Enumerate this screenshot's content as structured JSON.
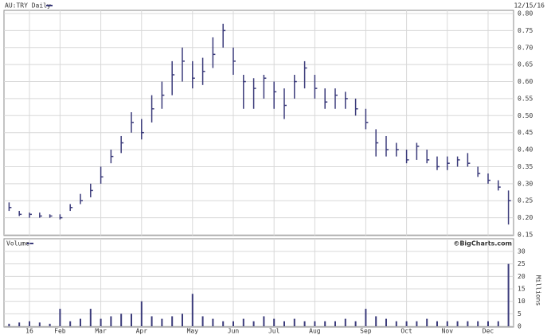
{
  "chart_data": [
    {
      "type": "ohlc",
      "title": "AU:TRY Daily",
      "date_label": "12/15/16",
      "color": "#3a3a7a",
      "grid": true,
      "categories": [
        null,
        null,
        "16",
        null,
        null,
        "Feb",
        null,
        null,
        null,
        "Mar",
        null,
        null,
        null,
        "Apr",
        null,
        null,
        null,
        null,
        "May",
        null,
        null,
        null,
        "Jun",
        null,
        null,
        null,
        "Jul",
        null,
        null,
        null,
        "Aug",
        null,
        null,
        null,
        null,
        "Sep",
        null,
        null,
        null,
        "Oct",
        null,
        null,
        null,
        "Nov",
        null,
        null,
        null,
        "Dec",
        null,
        null
      ],
      "series": [
        {
          "high": [
            0.245,
            0.22,
            0.215,
            0.215,
            0.21,
            0.21,
            0.24,
            0.27,
            0.3,
            0.35,
            0.4,
            0.44,
            0.51,
            0.49,
            0.56,
            0.6,
            0.66,
            0.7,
            0.66,
            0.67,
            0.73,
            0.77,
            0.7,
            0.62,
            0.61,
            0.62,
            0.6,
            0.58,
            0.62,
            0.66,
            0.62,
            0.58,
            0.58,
            0.57,
            0.55,
            0.52,
            0.46,
            0.44,
            0.42,
            0.4,
            0.42,
            0.4,
            0.38,
            0.38,
            0.38,
            0.39,
            0.35,
            0.33,
            0.31,
            0.28
          ],
          "low": [
            0.22,
            0.205,
            0.2,
            0.2,
            0.2,
            0.195,
            0.22,
            0.24,
            0.26,
            0.3,
            0.36,
            0.39,
            0.45,
            0.43,
            0.48,
            0.52,
            0.56,
            0.6,
            0.58,
            0.59,
            0.64,
            0.7,
            0.62,
            0.52,
            0.52,
            0.55,
            0.52,
            0.49,
            0.55,
            0.58,
            0.55,
            0.52,
            0.52,
            0.52,
            0.5,
            0.46,
            0.38,
            0.38,
            0.38,
            0.36,
            0.37,
            0.36,
            0.34,
            0.34,
            0.35,
            0.35,
            0.32,
            0.3,
            0.28,
            0.18
          ],
          "close": [
            0.23,
            0.21,
            0.21,
            0.205,
            0.205,
            0.2,
            0.23,
            0.25,
            0.28,
            0.32,
            0.38,
            0.42,
            0.48,
            0.45,
            0.52,
            0.56,
            0.62,
            0.66,
            0.61,
            0.63,
            0.68,
            0.75,
            0.66,
            0.6,
            0.58,
            0.61,
            0.57,
            0.53,
            0.6,
            0.64,
            0.58,
            0.54,
            0.56,
            0.55,
            0.52,
            0.48,
            0.42,
            0.4,
            0.4,
            0.37,
            0.41,
            0.37,
            0.35,
            0.36,
            0.37,
            0.36,
            0.33,
            0.31,
            0.29,
            0.25
          ]
        }
      ],
      "ylim": [
        0.15,
        0.8
      ],
      "yticks": [
        0.15,
        {
          "value": 0.2,
          "label": "0.20"
        },
        0.25,
        {
          "value": 0.3,
          "label": "0.30"
        },
        0.35,
        {
          "value": 0.4,
          "label": "0.40"
        },
        0.45,
        {
          "value": 0.5,
          "label": "0.50"
        },
        0.55,
        {
          "value": 0.6,
          "label": "0.60"
        },
        0.65,
        {
          "value": 0.7,
          "label": "0.70"
        },
        0.75,
        {
          "value": 0.8,
          "label": "0.80"
        }
      ]
    },
    {
      "type": "bar",
      "title": "Volume",
      "credit": "©BigCharts.com",
      "y_label": "Millions",
      "color": "#3a3a7a",
      "grid": true,
      "values": [
        1,
        1.5,
        2,
        1.5,
        1,
        7,
        2,
        3,
        7,
        3,
        4,
        5,
        5,
        10,
        4,
        3,
        4,
        5,
        13,
        4,
        3,
        2,
        2,
        3,
        2,
        4,
        3,
        2,
        3,
        2,
        2,
        2,
        2,
        3,
        2,
        7,
        4,
        3,
        2,
        2,
        2,
        3,
        2,
        2,
        2,
        2,
        2,
        2,
        2,
        25
      ],
      "ylim": [
        0,
        30
      ],
      "yticks": [
        0,
        5,
        10,
        15,
        20,
        25,
        30
      ]
    }
  ]
}
